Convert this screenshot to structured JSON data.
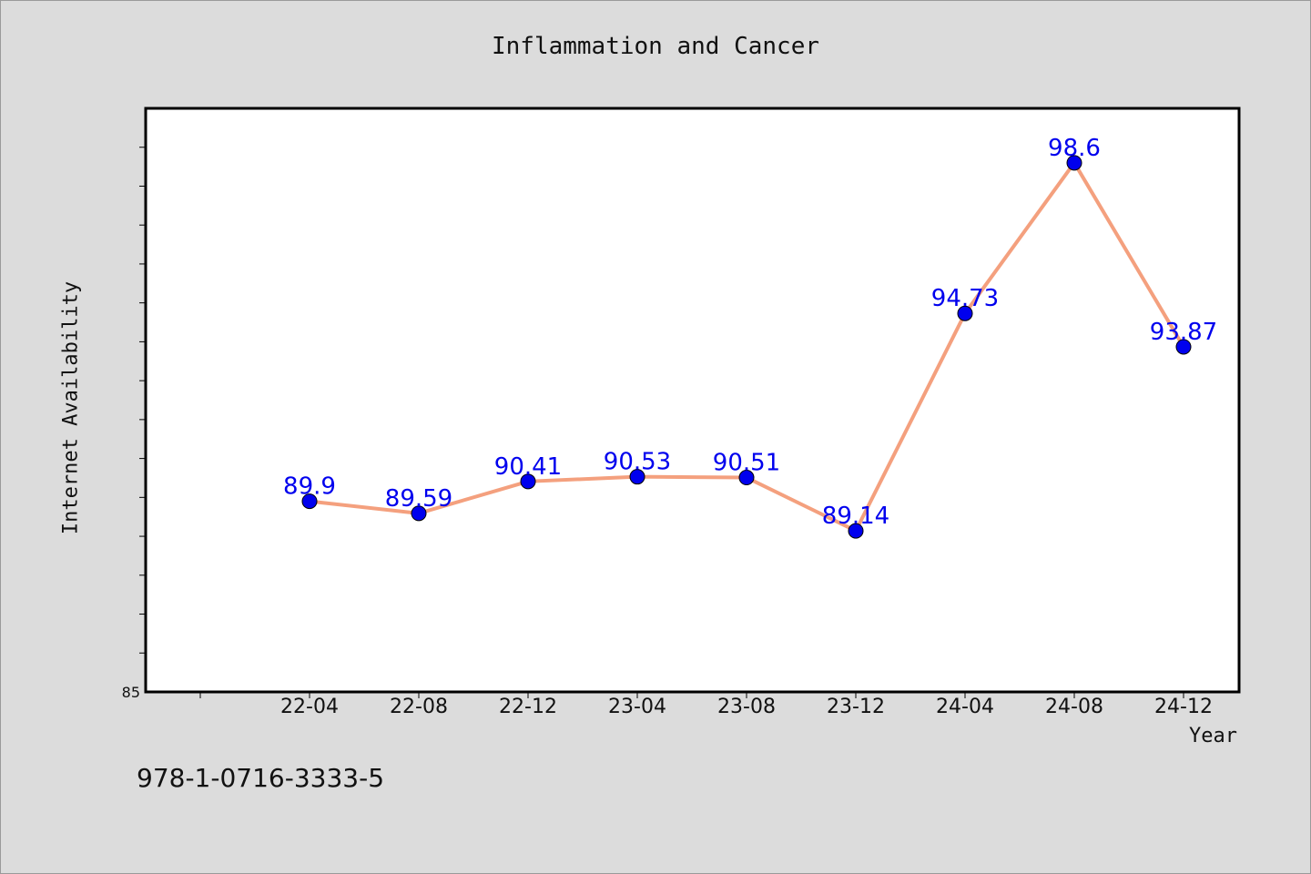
{
  "chart_data": {
    "type": "line",
    "title": "Inflammation and Cancer",
    "xlabel": "Year",
    "ylabel": "Internet Availability",
    "categories": [
      "22-04",
      "22-08",
      "22-12",
      "23-04",
      "23-08",
      "23-12",
      "24-04",
      "24-08",
      "24-12"
    ],
    "series": [
      {
        "values": [
          89.9,
          89.59,
          90.41,
          90.53,
          90.51,
          89.14,
          94.73,
          98.6,
          93.87
        ]
      }
    ],
    "data_labels": [
      "89.9",
      "89.59",
      "90.41",
      "90.53",
      "90.51",
      "89.14",
      "94.73",
      "98.6",
      "93.87"
    ],
    "ylim": [
      85,
      100
    ],
    "ytick_labels": [
      "85"
    ],
    "grid": false,
    "line_color": "#f4a07e",
    "marker_color": "#0000ee",
    "label_color": "#0000ee"
  },
  "footer_text": "978-1-0716-3333-5"
}
